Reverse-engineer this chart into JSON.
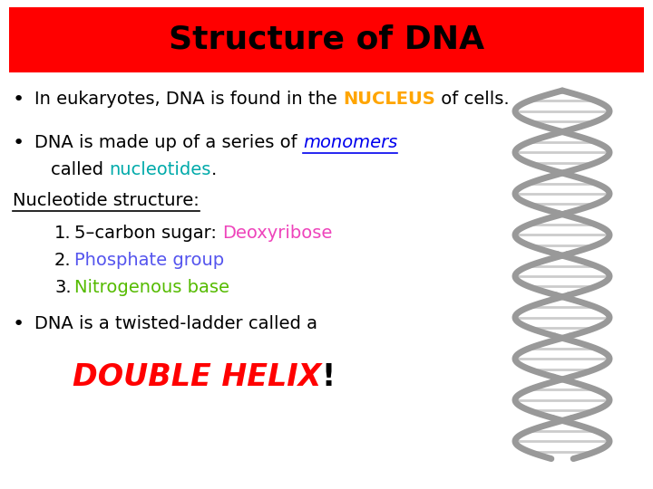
{
  "title": "Structure of DNA",
  "title_bg": "#FF0000",
  "title_color": "#000000",
  "title_fontsize": 26,
  "bg_color": "#FFFFFF",
  "body_fontsize": 14,
  "bullet_fontsize": 16,
  "helix_fontsize": 24,
  "lines": [
    {
      "type": "bullet",
      "parts": [
        {
          "text": "In eukaryotes, DNA is found in the ",
          "color": "#000000",
          "bold": false,
          "italic": false,
          "underline": false
        },
        {
          "text": "NUCLEUS",
          "color": "#FFA500",
          "bold": true,
          "italic": false,
          "underline": false
        },
        {
          "text": " of cells.",
          "color": "#000000",
          "bold": false,
          "italic": false,
          "underline": false
        }
      ]
    },
    {
      "type": "bullet",
      "parts": [
        {
          "text": "DNA is made up of a series of ",
          "color": "#000000",
          "bold": false,
          "italic": false,
          "underline": false
        },
        {
          "text": "monomers",
          "color": "#0000EE",
          "bold": false,
          "italic": true,
          "underline": true
        }
      ]
    },
    {
      "type": "indent",
      "parts": [
        {
          "text": "called ",
          "color": "#000000",
          "bold": false,
          "italic": false,
          "underline": false
        },
        {
          "text": "nucleotides",
          "color": "#00AAAA",
          "bold": false,
          "italic": false,
          "underline": false
        },
        {
          "text": ".",
          "color": "#000000",
          "bold": false,
          "italic": false,
          "underline": false
        }
      ]
    },
    {
      "type": "heading",
      "parts": [
        {
          "text": "Nucleotide structure:",
          "color": "#000000",
          "bold": false,
          "italic": false,
          "underline": true
        }
      ]
    },
    {
      "type": "numbered",
      "num": "1.",
      "parts": [
        {
          "text": "5–carbon sugar: ",
          "color": "#000000",
          "bold": false,
          "italic": false,
          "underline": false
        },
        {
          "text": "Deoxyribose",
          "color": "#EE44BB",
          "bold": false,
          "italic": false,
          "underline": false
        }
      ]
    },
    {
      "type": "numbered",
      "num": "2.",
      "parts": [
        {
          "text": "Phosphate group",
          "color": "#5555EE",
          "bold": false,
          "italic": false,
          "underline": false
        }
      ]
    },
    {
      "type": "numbered",
      "num": "3.",
      "parts": [
        {
          "text": "Nitrogenous base",
          "color": "#55BB00",
          "bold": false,
          "italic": false,
          "underline": false
        }
      ]
    },
    {
      "type": "bullet",
      "parts": [
        {
          "text": "DNA is a twisted-ladder called a",
          "color": "#000000",
          "bold": false,
          "italic": false,
          "underline": false
        }
      ]
    },
    {
      "type": "double_helix",
      "parts": [
        {
          "text": "DOUBLE HELIX",
          "color": "#FF0000",
          "bold": true,
          "italic": true,
          "underline": false
        },
        {
          "text": "!",
          "color": "#000000",
          "bold": true,
          "italic": false,
          "underline": false
        }
      ]
    }
  ]
}
